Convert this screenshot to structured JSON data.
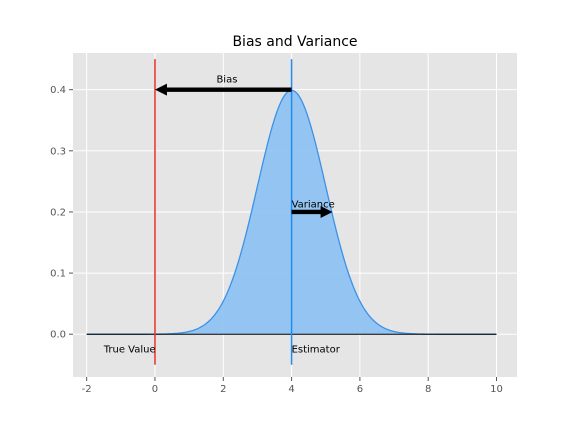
{
  "chart_data": {
    "type": "area",
    "title": "Bias and Variance",
    "xlabel": "",
    "ylabel": "",
    "xlim": [
      -2.4,
      10.6
    ],
    "ylim": [
      -0.07,
      0.46
    ],
    "x_ticks": [
      -2,
      0,
      2,
      4,
      6,
      8,
      10
    ],
    "y_ticks": [
      0.0,
      0.1,
      0.2,
      0.3,
      0.4
    ],
    "grid": true,
    "distribution": {
      "kind": "normal",
      "mean": 4,
      "std": 1,
      "x_range": [
        -2,
        10
      ]
    },
    "true_value": {
      "x": 0,
      "y_range": [
        -0.05,
        0.45
      ],
      "color": "#e8342a"
    },
    "estimator": {
      "x": 4,
      "y_range": [
        -0.05,
        0.45
      ],
      "color": "#1f8ef1"
    },
    "fill_color": "#8fc3f2",
    "curve_color": "#3a92e8",
    "annotations": {
      "bias": {
        "text": "Bias",
        "x": 1.8,
        "y": 0.412,
        "arrow_from": [
          4,
          0.4
        ],
        "arrow_to": [
          0,
          0.4
        ]
      },
      "variance": {
        "text": "Variance",
        "x": 4.0,
        "y": 0.207,
        "arrow_from": [
          4,
          0.2
        ],
        "arrow_to": [
          5.2,
          0.2
        ]
      },
      "true_value": {
        "text": "True Value",
        "x": -1.5,
        "y": -0.03
      },
      "estimator": {
        "text": "Estimator",
        "x": 4.0,
        "y": -0.03
      }
    }
  }
}
